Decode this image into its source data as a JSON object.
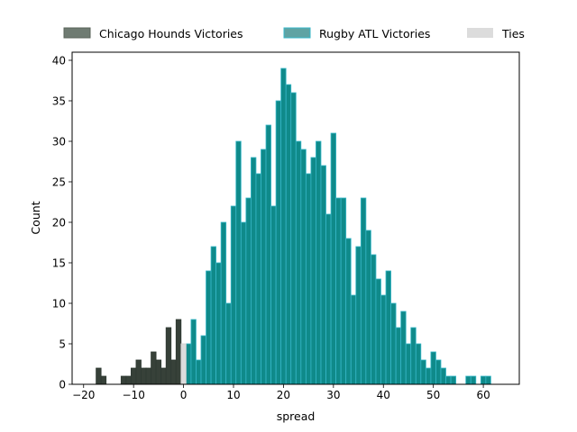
{
  "chart_data": {
    "type": "bar",
    "title": "",
    "xlabel": "spread",
    "ylabel": "Count",
    "xlim": [
      -22.3,
      67.2
    ],
    "ylim": [
      0,
      41
    ],
    "x_ticks": [
      -20,
      -10,
      0,
      10,
      20,
      30,
      40,
      50,
      60
    ],
    "y_ticks": [
      0,
      5,
      10,
      15,
      20,
      25,
      30,
      35,
      40
    ],
    "grid": false,
    "legend_placement": "top, outside plot area",
    "bin_width": 1,
    "series": [
      {
        "name": "Chicago Hounds Victories",
        "color": "#374139",
        "edge": "#2f3a33",
        "x": [
          -17,
          -16,
          -12,
          -11,
          -10,
          -9,
          -8,
          -7,
          -6,
          -5,
          -4,
          -3,
          -2,
          -1
        ],
        "values": [
          2,
          1,
          1,
          1,
          2,
          3,
          2,
          2,
          4,
          3,
          2,
          7,
          3,
          8
        ]
      },
      {
        "name": "Rugby ATL Victories",
        "color": "#0f8a8a",
        "edge": "#37b7c8",
        "x": [
          1,
          2,
          3,
          4,
          5,
          6,
          7,
          8,
          9,
          10,
          11,
          12,
          13,
          14,
          15,
          16,
          17,
          18,
          19,
          20,
          21,
          22,
          23,
          24,
          25,
          26,
          27,
          28,
          29,
          30,
          31,
          32,
          33,
          34,
          35,
          36,
          37,
          38,
          39,
          40,
          41,
          42,
          43,
          44,
          45,
          46,
          47,
          48,
          49,
          50,
          51,
          52,
          53,
          54,
          55,
          56,
          57,
          58,
          59,
          60,
          61,
          62,
          63
        ],
        "values": [
          5,
          8,
          3,
          6,
          14,
          17,
          15,
          20,
          10,
          22,
          30,
          20,
          23,
          28,
          26,
          29,
          32,
          22,
          35,
          39,
          37,
          36,
          30,
          29,
          26,
          28,
          30,
          27,
          21,
          31,
          23,
          23,
          18,
          11,
          17,
          23,
          19,
          16,
          13,
          11,
          14,
          10,
          7,
          9,
          5,
          7,
          5,
          3,
          2,
          4,
          3,
          2,
          1,
          1,
          0,
          0,
          1,
          1,
          0,
          1,
          1,
          0,
          0
        ]
      },
      {
        "name": "Ties",
        "color": "#dcdcdc",
        "edge": "#cfcfcf",
        "x": [
          0
        ],
        "values": [
          5
        ]
      }
    ]
  }
}
